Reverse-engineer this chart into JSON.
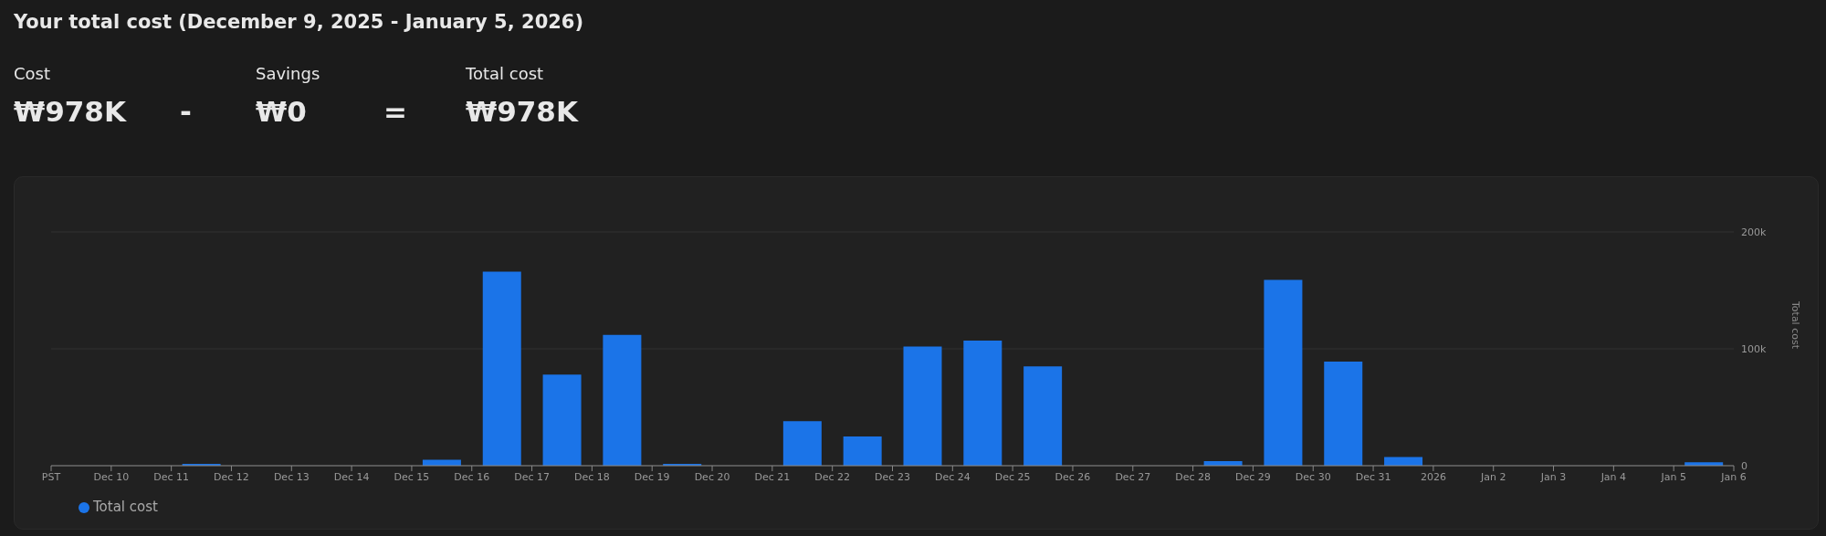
{
  "chart_data": {
    "type": "bar",
    "title": "Your total cost (December 9, 2025 - January 5, 2026)",
    "annotations": [
      "Cost",
      "₩978K",
      "-",
      "Savings",
      "₩0",
      "=",
      "Total cost",
      "₩978K"
    ],
    "ylabel": "Total cost",
    "x": [
      "2025-12-09T12:00",
      "2025-12-10T12:00",
      "2025-12-11T12:00",
      "2025-12-12T12:00",
      "2025-12-13T12:00",
      "2025-12-14T12:00",
      "2025-12-15T12:00",
      "2025-12-16T12:00",
      "2025-12-17T12:00",
      "2025-12-18T12:00",
      "2025-12-19T12:00",
      "2025-12-20T12:00",
      "2025-12-21T12:00",
      "2025-12-22T12:00",
      "2025-12-23T12:00",
      "2025-12-24T12:00",
      "2025-12-25T12:00",
      "2025-12-26T12:00",
      "2025-12-27T12:00",
      "2025-12-28T12:00",
      "2025-12-29T12:00",
      "2025-12-30T12:00",
      "2025-12-31T12:00",
      "2026-01-01T12:00",
      "2026-01-02T12:00",
      "2026-01-03T12:00",
      "2026-01-04T12:00",
      "2026-01-05T12:00"
    ],
    "series": [
      {
        "name": "Total cost",
        "color": "#1b74e8",
        "values": [
          0,
          0,
          1500,
          0,
          0,
          0,
          5000,
          166000,
          78000,
          112000,
          1500,
          0,
          38000,
          25000,
          102000,
          107000,
          85000,
          0,
          0,
          4000,
          159000,
          89000,
          7500,
          0,
          0,
          0,
          0,
          3000
        ]
      }
    ],
    "xlim": [
      "2025-12-09",
      "2026-01-06"
    ],
    "xticks": [
      {
        "value": "2025-12-09",
        "label": "PST"
      },
      {
        "value": "2025-12-10",
        "label": "Dec 10"
      },
      {
        "value": "2025-12-11",
        "label": "Dec 11"
      },
      {
        "value": "2025-12-12",
        "label": "Dec 12"
      },
      {
        "value": "2025-12-13",
        "label": "Dec 13"
      },
      {
        "value": "2025-12-14",
        "label": "Dec 14"
      },
      {
        "value": "2025-12-15",
        "label": "Dec 15"
      },
      {
        "value": "2025-12-16",
        "label": "Dec 16"
      },
      {
        "value": "2025-12-17",
        "label": "Dec 17"
      },
      {
        "value": "2025-12-18",
        "label": "Dec 18"
      },
      {
        "value": "2025-12-19",
        "label": "Dec 19"
      },
      {
        "value": "2025-12-20",
        "label": "Dec 20"
      },
      {
        "value": "2025-12-21",
        "label": "Dec 21"
      },
      {
        "value": "2025-12-22",
        "label": "Dec 22"
      },
      {
        "value": "2025-12-23",
        "label": "Dec 23"
      },
      {
        "value": "2025-12-24",
        "label": "Dec 24"
      },
      {
        "value": "2025-12-25",
        "label": "Dec 25"
      },
      {
        "value": "2025-12-26",
        "label": "Dec 26"
      },
      {
        "value": "2025-12-27",
        "label": "Dec 27"
      },
      {
        "value": "2025-12-28",
        "label": "Dec 28"
      },
      {
        "value": "2025-12-29",
        "label": "Dec 29"
      },
      {
        "value": "2025-12-30",
        "label": "Dec 30"
      },
      {
        "value": "2025-12-31",
        "label": "Dec 31"
      },
      {
        "value": "2026-01-01",
        "label": "2026"
      },
      {
        "value": "2026-01-02",
        "label": "Jan 2"
      },
      {
        "value": "2026-01-03",
        "label": "Jan 3"
      },
      {
        "value": "2026-01-04",
        "label": "Jan 4"
      },
      {
        "value": "2026-01-05",
        "label": "Jan 5"
      },
      {
        "value": "2026-01-06",
        "label": "Jan 6"
      }
    ],
    "ylim": [
      0,
      200000
    ],
    "yticks": [
      0,
      {
        "value": 100000,
        "label": "100k"
      },
      {
        "value": 200000,
        "label": "200k"
      }
    ],
    "grid": "y",
    "legend": "bottom left"
  }
}
